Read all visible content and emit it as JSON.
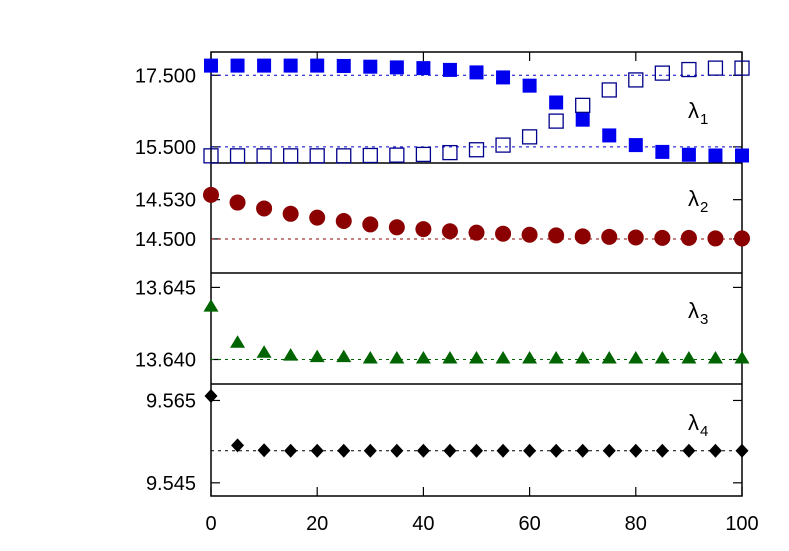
{
  "chart_data": {
    "type": "scatter",
    "x_ticks": [
      "0",
      "20",
      "40",
      "60",
      "80",
      "100"
    ],
    "xlim": [
      0,
      100
    ],
    "panels": [
      {
        "label_main": "λ",
        "label_sub": "1",
        "yticks": [
          {
            "label": "17.500",
            "value": 17.5
          },
          {
            "label": "15.500",
            "value": 15.5
          }
        ],
        "ylim": [
          15.05,
          18.15
        ],
        "reference_lines": [
          {
            "y": 17.5,
            "color": "#0000cc"
          },
          {
            "y": 15.5,
            "color": "#0000cc"
          }
        ],
        "series": [
          {
            "marker": "square-filled",
            "color": "#0000ee",
            "x": [
              0,
              5,
              10,
              15,
              20,
              25,
              30,
              35,
              40,
              45,
              50,
              55,
              60,
              65,
              70,
              75,
              80,
              85,
              90,
              95,
              100
            ],
            "y": [
              17.77,
              17.77,
              17.77,
              17.77,
              17.77,
              17.76,
              17.74,
              17.72,
              17.7,
              17.65,
              17.58,
              17.44,
              17.21,
              16.74,
              16.26,
              15.82,
              15.55,
              15.36,
              15.28,
              15.26,
              15.26
            ]
          },
          {
            "marker": "square-open",
            "color": "#00008b",
            "x": [
              0,
              5,
              10,
              15,
              20,
              25,
              30,
              35,
              40,
              45,
              50,
              55,
              60,
              65,
              70,
              75,
              80,
              85,
              90,
              95,
              100
            ],
            "y": [
              15.25,
              15.25,
              15.25,
              15.25,
              15.25,
              15.25,
              15.26,
              15.27,
              15.29,
              15.34,
              15.42,
              15.55,
              15.78,
              16.22,
              16.66,
              17.09,
              17.37,
              17.56,
              17.66,
              17.7,
              17.7
            ]
          }
        ]
      },
      {
        "label_main": "λ",
        "label_sub": "2",
        "yticks": [
          {
            "label": "14.530",
            "value": 14.53
          },
          {
            "label": "14.500",
            "value": 14.5
          }
        ],
        "ylim": [
          14.474,
          14.558
        ],
        "reference_lines": [
          {
            "y": 14.5,
            "color": "#8b0000"
          }
        ],
        "series": [
          {
            "marker": "circle-filled",
            "color": "#8b0000",
            "x": [
              0,
              5,
              10,
              15,
              20,
              25,
              30,
              35,
              40,
              45,
              50,
              55,
              60,
              65,
              70,
              75,
              80,
              85,
              90,
              95,
              100
            ],
            "y": [
              14.5337,
              14.5278,
              14.5233,
              14.5192,
              14.5163,
              14.5137,
              14.5111,
              14.5089,
              14.5075,
              14.5059,
              14.5048,
              14.504,
              14.5032,
              14.5027,
              14.502,
              14.5016,
              14.5011,
              14.5008,
              14.5008,
              14.5004,
              14.5004
            ]
          }
        ]
      },
      {
        "label_main": "λ",
        "label_sub": "3",
        "yticks": [
          {
            "label": "13.645",
            "value": 13.645
          },
          {
            "label": "13.640",
            "value": 13.64
          }
        ],
        "ylim": [
          13.6383,
          13.646
        ],
        "reference_lines": [
          {
            "y": 13.64,
            "color": "#006400"
          }
        ],
        "series": [
          {
            "marker": "triangle-filled",
            "color": "#006400",
            "x": [
              0,
              5,
              10,
              15,
              20,
              25,
              30,
              35,
              40,
              45,
              50,
              55,
              60,
              65,
              70,
              75,
              80,
              85,
              90,
              95,
              100
            ],
            "y": [
              13.6437,
              13.6412,
              13.6405,
              13.6403,
              13.6402,
              13.6402,
              13.6401,
              13.6401,
              13.6401,
              13.6401,
              13.6401,
              13.6401,
              13.6401,
              13.6401,
              13.6401,
              13.6401,
              13.6401,
              13.6401,
              13.6401,
              13.6401,
              13.6401
            ]
          }
        ]
      },
      {
        "label_main": "λ",
        "label_sub": "4",
        "yticks": [
          {
            "label": "9.565",
            "value": 9.565
          },
          {
            "label": "9.545",
            "value": 9.545
          }
        ],
        "ylim": [
          9.5418,
          9.569
        ],
        "reference_lines": [
          {
            "y": 9.5528,
            "color": "#000000"
          }
        ],
        "series": [
          {
            "marker": "diamond-filled",
            "color": "#000000",
            "x": [
              0,
              5,
              10,
              15,
              20,
              25,
              30,
              35,
              40,
              45,
              50,
              55,
              60,
              65,
              70,
              75,
              80,
              85,
              90,
              95,
              100
            ],
            "y": [
              9.5661,
              9.5541,
              9.5529,
              9.5528,
              9.5528,
              9.5528,
              9.5528,
              9.5528,
              9.5528,
              9.5528,
              9.5528,
              9.5528,
              9.5528,
              9.5528,
              9.5528,
              9.5528,
              9.5528,
              9.5528,
              9.5528,
              9.5528,
              9.5528
            ]
          }
        ]
      }
    ]
  }
}
